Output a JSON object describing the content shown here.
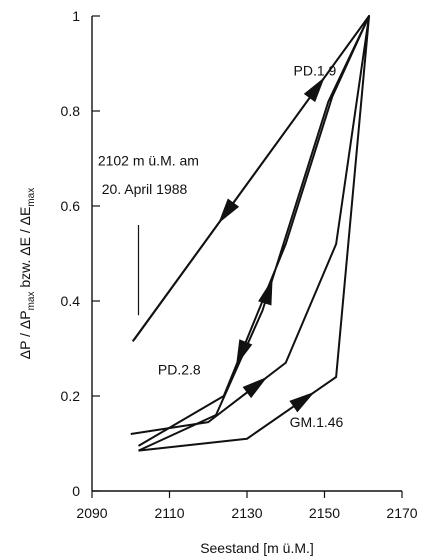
{
  "chart_data": {
    "type": "line",
    "xlabel": "Seestand [m ü.M.]",
    "ylabel": {
      "parts": [
        {
          "text": "ΔP / ΔP"
        },
        {
          "text": "max",
          "sub": true
        },
        {
          "text": " bzw. ΔE / ΔE"
        },
        {
          "text": "max",
          "sub": true
        }
      ]
    },
    "xlim": [
      2090,
      2170
    ],
    "ylim": [
      0,
      1
    ],
    "x_ticks": [
      2090,
      2110,
      2130,
      2150,
      2170
    ],
    "y_ticks": [
      0,
      0.2,
      0.4,
      0.6,
      0.8,
      1
    ],
    "y_tick_labels": [
      "0",
      "0.2",
      "0.4",
      "0.6",
      "0.8",
      "1"
    ],
    "grid": false,
    "series": [
      {
        "name": "PD.1.9",
        "x": [
          2100.5,
          2161.5,
          2101,
          2161.5
        ],
        "y": [
          0.315,
          1.0,
          0.32,
          1.0
        ]
      },
      {
        "name": "PD.2.8",
        "x": [
          2102,
          2122,
          2134,
          2151,
          2161.5,
          2152,
          2140,
          2124,
          2102
        ],
        "y": [
          0.085,
          0.16,
          0.38,
          0.82,
          1.0,
          0.83,
          0.52,
          0.2,
          0.095
        ]
      },
      {
        "name": "GM.1.46",
        "x": [
          2100,
          2120,
          2140,
          2153,
          2161.5,
          2153,
          2130,
          2102
        ],
        "y": [
          0.12,
          0.145,
          0.27,
          0.52,
          1.0,
          0.24,
          0.11,
          0.085
        ]
      }
    ],
    "arrows": [
      {
        "series": "PD.1.9",
        "x": 2148,
        "y": 0.85,
        "direction": "up"
      },
      {
        "series": "PD.1.9",
        "x": 2122,
        "y": 0.6,
        "direction": "down"
      },
      {
        "series": "PD.2.8",
        "x": 2136,
        "y": 0.42,
        "direction": "up"
      },
      {
        "series": "PD.2.8",
        "x": 2128,
        "y": 0.29,
        "direction": "down"
      },
      {
        "series": "GM.1.46",
        "x": 2145,
        "y": 0.19,
        "direction": "up"
      },
      {
        "series": "GM.1.46",
        "x": 2133,
        "y": 0.22,
        "direction": "up"
      }
    ],
    "annotations": [
      {
        "text": "PD.1.9",
        "x": 2142,
        "y": 0.875
      },
      {
        "text": "2102 m ü.M. am",
        "x": 2091.5,
        "y": 0.685
      },
      {
        "text": "20. April 1988",
        "x": 2092.5,
        "y": 0.625
      },
      {
        "text": "PD.2.8",
        "x": 2107,
        "y": 0.245
      },
      {
        "text": "GM.1.46",
        "x": 2141,
        "y": 0.135
      }
    ],
    "reference_line": {
      "x": 2102,
      "y_from": 0.37,
      "y_to": 0.56
    }
  }
}
